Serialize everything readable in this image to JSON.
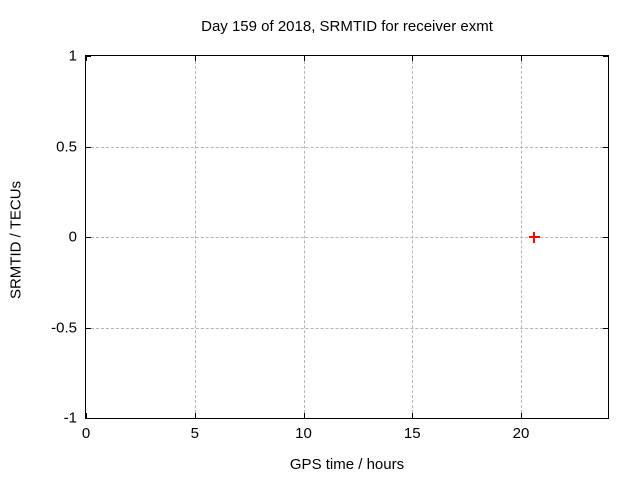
{
  "chart_data": {
    "type": "scatter",
    "title": "Day 159 of 2018, SRMTID for receiver exmt",
    "xlabel": "GPS time / hours",
    "ylabel": "SRMTID / TECUs",
    "xlim": [
      0,
      24
    ],
    "ylim": [
      -1,
      1
    ],
    "xticks": [
      0,
      5,
      10,
      15,
      20
    ],
    "xtick_labels": [
      "0",
      "5",
      "10",
      "15",
      "20"
    ],
    "yticks": [
      -1,
      -0.5,
      0,
      0.5,
      1
    ],
    "ytick_labels": [
      "-1",
      "-0.5",
      "0",
      "0.5",
      "1"
    ],
    "grid": true,
    "legend": "none",
    "grid_color": "#b4b4b4",
    "axis_color": "#000000",
    "background_color": "#ffffff",
    "series": [
      {
        "marker": "plus",
        "color": "#ff0000",
        "points": [
          {
            "x": 20.6,
            "y": 0.0
          }
        ]
      }
    ]
  }
}
